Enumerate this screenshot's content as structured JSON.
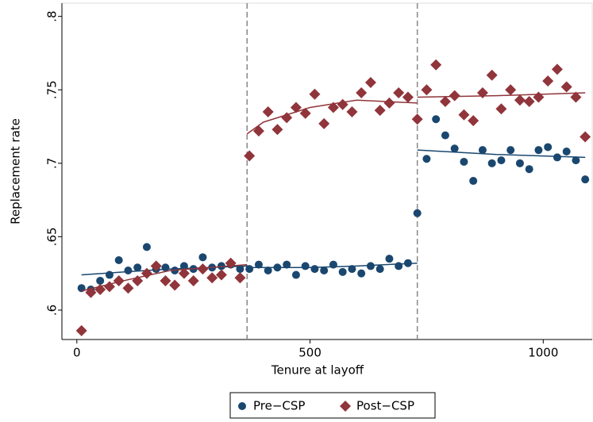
{
  "chart_data": {
    "type": "scatter",
    "x_label": "Tenure at layoff",
    "y_label": "Replacement rate",
    "xlim": [
      -32,
      1105
    ],
    "ylim": [
      0.58,
      0.809
    ],
    "xticks": [
      0,
      500,
      1000
    ],
    "yticks": [
      {
        "value": 0.6,
        "label": ".6"
      },
      {
        "value": 0.65,
        "label": ".65"
      },
      {
        "value": 0.7,
        "label": ".7"
      },
      {
        "value": 0.75,
        "label": ".75"
      },
      {
        "value": 0.8,
        "label": ".8"
      }
    ],
    "vlines": [
      365,
      730
    ],
    "series": [
      {
        "name": "Pre−CSP",
        "color": "#1a476f",
        "marker": "circle",
        "x": [
          10,
          30,
          50,
          70,
          90,
          110,
          130,
          150,
          170,
          190,
          210,
          230,
          250,
          270,
          290,
          310,
          330,
          350,
          370,
          390,
          410,
          430,
          450,
          470,
          490,
          510,
          530,
          550,
          570,
          590,
          610,
          630,
          650,
          670,
          690,
          710,
          730,
          750,
          770,
          790,
          810,
          830,
          850,
          870,
          890,
          910,
          930,
          950,
          970,
          990,
          1010,
          1030,
          1050,
          1070,
          1090
        ],
        "values": [
          0.615,
          0.614,
          0.62,
          0.624,
          0.634,
          0.627,
          0.629,
          0.643,
          0.628,
          0.629,
          0.627,
          0.63,
          0.628,
          0.636,
          0.629,
          0.63,
          0.631,
          0.628,
          0.628,
          0.631,
          0.627,
          0.629,
          0.631,
          0.624,
          0.63,
          0.628,
          0.627,
          0.631,
          0.626,
          0.628,
          0.625,
          0.63,
          0.628,
          0.635,
          0.63,
          0.632,
          0.666,
          0.703,
          0.73,
          0.719,
          0.71,
          0.701,
          0.688,
          0.709,
          0.7,
          0.702,
          0.709,
          0.7,
          0.696,
          0.709,
          0.711,
          0.704,
          0.708,
          0.702,
          0.689
        ],
        "fit_x": [
          10,
          100,
          200,
          365,
          null,
          365,
          500,
          600,
          730,
          null,
          730,
          900,
          1090
        ],
        "fit_y": [
          0.624,
          0.626,
          0.628,
          0.63,
          null,
          0.629,
          0.629,
          0.63,
          0.632,
          null,
          0.709,
          0.706,
          0.704
        ]
      },
      {
        "name": "Post−CSP",
        "color": "#90353b",
        "marker": "diamond",
        "x": [
          10,
          30,
          50,
          70,
          90,
          110,
          130,
          150,
          170,
          190,
          210,
          230,
          250,
          270,
          290,
          310,
          330,
          350,
          370,
          390,
          410,
          430,
          450,
          470,
          490,
          510,
          530,
          550,
          570,
          590,
          610,
          630,
          650,
          670,
          690,
          710,
          730,
          750,
          770,
          790,
          810,
          830,
          850,
          870,
          890,
          910,
          930,
          950,
          970,
          990,
          1010,
          1030,
          1050,
          1070,
          1090
        ],
        "values": [
          0.586,
          0.612,
          0.614,
          0.616,
          0.62,
          0.615,
          0.62,
          0.625,
          0.63,
          0.62,
          0.617,
          0.625,
          0.62,
          0.628,
          0.622,
          0.624,
          0.632,
          0.622,
          0.705,
          0.722,
          0.735,
          0.723,
          0.731,
          0.738,
          0.734,
          0.747,
          0.727,
          0.738,
          0.74,
          0.735,
          0.748,
          0.755,
          0.736,
          0.741,
          0.748,
          0.745,
          0.73,
          0.75,
          0.767,
          0.742,
          0.746,
          0.733,
          0.729,
          0.748,
          0.76,
          0.737,
          0.75,
          0.743,
          0.742,
          0.745,
          0.756,
          0.764,
          0.752,
          0.745,
          0.718
        ],
        "fit_x": [
          10,
          100,
          200,
          365,
          null,
          365,
          400,
          500,
          600,
          730,
          null,
          730,
          900,
          1090
        ],
        "fit_y": [
          0.613,
          0.62,
          0.627,
          0.631,
          null,
          0.72,
          0.728,
          0.738,
          0.743,
          0.741,
          null,
          0.745,
          0.746,
          0.748
        ]
      }
    ]
  }
}
